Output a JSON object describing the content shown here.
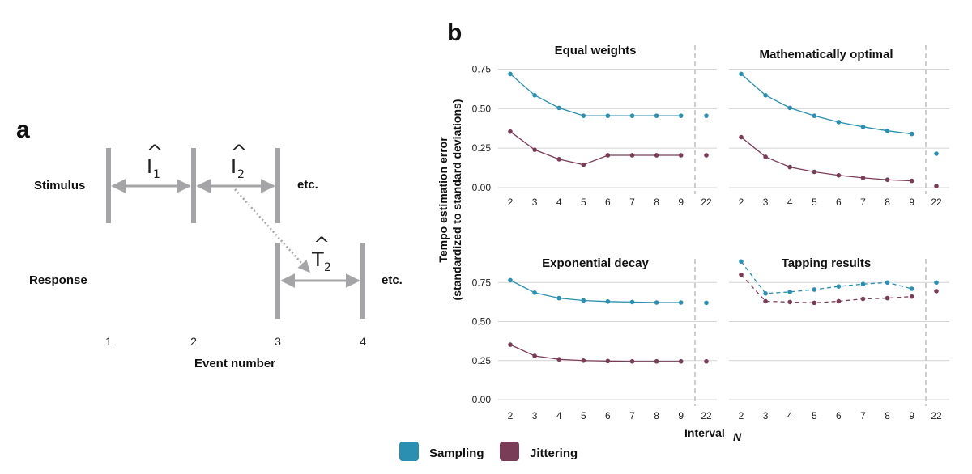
{
  "panel_a": {
    "letter": "a",
    "row_stimulus": "Stimulus",
    "row_response": "Response",
    "interval_symbol": "I",
    "interval_1_sub": "1",
    "interval_2_sub": "2",
    "estimate_symbol": "T",
    "estimate_2_sub": "2",
    "etc_stimulus": "etc.",
    "etc_response": "etc.",
    "event_numbers": [
      "1",
      "2",
      "3",
      "4"
    ],
    "x_axis_title": "Event number"
  },
  "panel_b": {
    "letter": "b"
  },
  "colors": {
    "sampling": "#2a8fb0",
    "jittering": "#7a3d57",
    "grid": "#d4d4d4",
    "bars": "#a5a5a7",
    "separator": "#bdbdbd"
  },
  "chart_data": {
    "type": "line",
    "facets": [
      {
        "title": "Equal weights",
        "line_style": "solid",
        "x": [
          2,
          3,
          4,
          5,
          6,
          7,
          8,
          9
        ],
        "series": [
          {
            "name": "Sampling",
            "values": [
              0.72,
              0.585,
              0.505,
              0.455,
              0.455,
              0.455,
              0.455,
              0.455
            ],
            "value_22": 0.455
          },
          {
            "name": "Jittering",
            "values": [
              0.355,
              0.24,
              0.18,
              0.145,
              0.205,
              0.205,
              0.205,
              0.205
            ],
            "value_22": 0.205
          }
        ]
      },
      {
        "title": "Mathematically optimal",
        "line_style": "solid",
        "x": [
          2,
          3,
          4,
          5,
          6,
          7,
          8,
          9
        ],
        "series": [
          {
            "name": "Sampling",
            "values": [
              0.72,
              0.585,
              0.505,
              0.455,
              0.415,
              0.385,
              0.36,
              0.34
            ],
            "value_22": 0.215
          },
          {
            "name": "Jittering",
            "values": [
              0.32,
              0.195,
              0.13,
              0.1,
              0.078,
              0.062,
              0.05,
              0.043
            ],
            "value_22": 0.01
          }
        ]
      },
      {
        "title": "Exponential decay",
        "line_style": "solid",
        "x": [
          2,
          3,
          4,
          5,
          6,
          7,
          8,
          9
        ],
        "series": [
          {
            "name": "Sampling",
            "values": [
              0.765,
              0.685,
              0.65,
              0.635,
              0.628,
              0.625,
              0.622,
              0.622
            ],
            "value_22": 0.62
          },
          {
            "name": "Jittering",
            "values": [
              0.352,
              0.28,
              0.258,
              0.25,
              0.247,
              0.245,
              0.245,
              0.245
            ],
            "value_22": 0.245
          }
        ]
      },
      {
        "title": "Tapping results",
        "line_style": "dashed",
        "x": [
          2,
          3,
          4,
          5,
          6,
          7,
          8,
          9
        ],
        "series": [
          {
            "name": "Sampling",
            "values": [
              0.885,
              0.68,
              0.69,
              0.705,
              0.725,
              0.74,
              0.75,
              0.71
            ],
            "value_22": 0.75
          },
          {
            "name": "Jittering",
            "values": [
              0.8,
              0.63,
              0.625,
              0.62,
              0.63,
              0.645,
              0.65,
              0.66
            ],
            "value_22": 0.695
          }
        ]
      }
    ],
    "x_tick_labels": [
      "2",
      "3",
      "4",
      "5",
      "6",
      "7",
      "8",
      "9",
      "22"
    ],
    "y_ticks": [
      0.0,
      0.25,
      0.5,
      0.75
    ],
    "y_tick_labels": [
      "0.00",
      "0.25",
      "0.50",
      "0.75"
    ],
    "ylim": [
      0,
      0.85
    ],
    "y_label_line1": "Tempo estimation error",
    "y_label_line2": "(standardized to standard deviations)",
    "x_label": "Interval",
    "x_label_sub": "N",
    "legend": [
      {
        "name": "Sampling",
        "color": "#2a8fb0"
      },
      {
        "name": "Jittering",
        "color": "#7a3d57"
      }
    ],
    "legend_position": "bottom",
    "grid": true
  }
}
